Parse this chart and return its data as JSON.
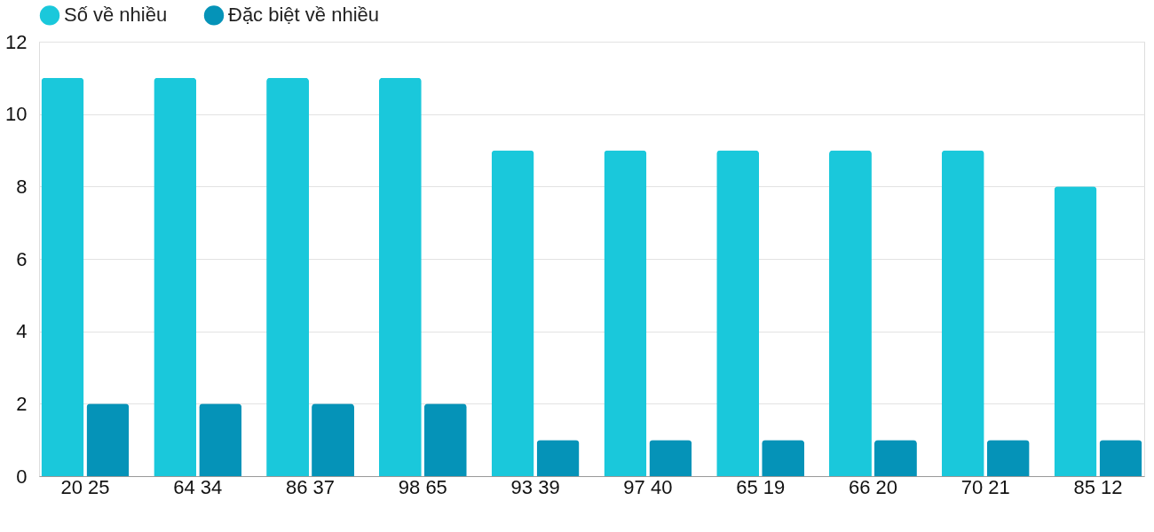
{
  "chart_data": {
    "type": "bar",
    "categories": [
      "20 25",
      "64 34",
      "86 37",
      "98 65",
      "93 39",
      "97 40",
      "65 19",
      "66 20",
      "70 21",
      "85 12"
    ],
    "series": [
      {
        "name": "Số về nhiều",
        "color": "#1ac8db",
        "values": [
          11,
          11,
          11,
          11,
          9,
          9,
          9,
          9,
          9,
          8
        ]
      },
      {
        "name": "Đặc biệt về nhiều",
        "color": "#0593b8",
        "values": [
          2,
          2,
          2,
          2,
          1,
          1,
          1,
          1,
          1,
          1
        ]
      }
    ],
    "ylim": [
      0,
      12
    ],
    "yticks": [
      0,
      2,
      4,
      6,
      8,
      10,
      12
    ],
    "grid": "y",
    "legend": "top"
  }
}
